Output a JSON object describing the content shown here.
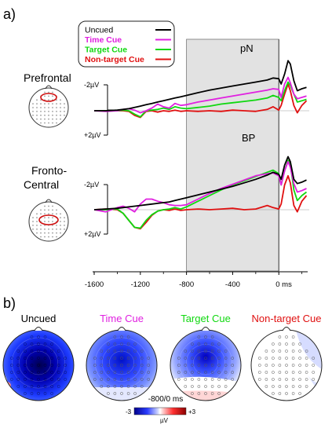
{
  "panel_labels": {
    "a": "a)",
    "b": "b)"
  },
  "colors": {
    "uncued": "#000000",
    "time": "#e020e0",
    "target": "#10d810",
    "nontarget": "#e01010",
    "window": "#e2e2e2"
  },
  "chart_data": [
    {
      "type": "line",
      "name_label": "Prefrontal",
      "region": "Prefrontal",
      "component_label": "pN",
      "xlim": [
        -1600,
        250
      ],
      "x_ticks": [
        -1600,
        -1200,
        -800,
        -400,
        0
      ],
      "x_tick_labels": [
        "-1600",
        "-1200",
        "-800",
        "-400",
        "0 ms"
      ],
      "y_tick_labels": [
        "-2µV",
        "+2µV"
      ],
      "ylim_note": "negative up",
      "shaded_window": [
        -800,
        0
      ],
      "legend": [
        "Uncued",
        "Time Cue",
        "Target Cue",
        "Non-target Cue"
      ],
      "x": [
        -1600,
        -1500,
        -1400,
        -1350,
        -1300,
        -1250,
        -1200,
        -1150,
        -1100,
        -1050,
        -1000,
        -950,
        -900,
        -850,
        -800,
        -700,
        -600,
        -500,
        -400,
        -300,
        -200,
        -100,
        -50,
        0,
        20,
        50,
        80,
        100,
        130,
        160,
        200,
        240
      ],
      "series": [
        {
          "name": "Uncued",
          "values": [
            0,
            0,
            0.1,
            0.2,
            0.3,
            0.5,
            0.7,
            0.9,
            1.1,
            1.3,
            1.5,
            1.7,
            1.9,
            2.1,
            2.3,
            2.7,
            3.1,
            3.4,
            3.7,
            4.0,
            4.3,
            4.6,
            4.9,
            4.8,
            4.0,
            5.5,
            7.5,
            7.0,
            4.5,
            3.0,
            3.3,
            3.5
          ]
        },
        {
          "name": "Time Cue",
          "values": [
            0,
            -0.1,
            0,
            0.2,
            0.3,
            0.1,
            -0.3,
            0,
            0.4,
            1.0,
            0.6,
            0.4,
            1.1,
            0.8,
            0.9,
            1.3,
            1.6,
            1.9,
            2.2,
            2.5,
            2.8,
            3.1,
            3.3,
            3.2,
            2.0,
            4.0,
            5.0,
            4.2,
            2.5,
            1.8,
            2.0,
            2.2
          ]
        },
        {
          "name": "Target Cue",
          "values": [
            0,
            0,
            0,
            0.1,
            0,
            -0.5,
            -0.9,
            0,
            0.1,
            0.2,
            0.4,
            0.2,
            0.6,
            0.4,
            0.3,
            0.5,
            0.7,
            1.0,
            1.2,
            1.4,
            1.6,
            1.9,
            2.3,
            2.0,
            1.5,
            3.0,
            4.3,
            3.8,
            2.5,
            1.3,
            1.5,
            1.7
          ]
        },
        {
          "name": "Non-target Cue",
          "values": [
            0,
            0,
            0,
            0,
            -0.1,
            -0.7,
            -1.0,
            -0.1,
            0,
            -0.2,
            0,
            -0.1,
            0.1,
            -0.1,
            0,
            -0.1,
            0,
            -0.1,
            0.1,
            0,
            -0.1,
            0.2,
            0.6,
            0.1,
            0.8,
            2.5,
            4.0,
            3.0,
            0.8,
            -0.3,
            0.8,
            1.5
          ]
        }
      ]
    },
    {
      "type": "line",
      "name_label": "Fronto-Central",
      "region": "Fronto-Central",
      "component_label": "BP",
      "xlim": [
        -1600,
        250
      ],
      "x_ticks": [
        -1600,
        -1200,
        -800,
        -400,
        0
      ],
      "x_tick_labels": [
        "-1600",
        "-1200",
        "-800",
        "-400",
        "0 ms"
      ],
      "y_tick_labels": [
        "-2µV",
        "+2µV"
      ],
      "ylim_note": "negative up",
      "shaded_window": [
        -800,
        0
      ],
      "x": [
        -1600,
        -1500,
        -1400,
        -1350,
        -1300,
        -1250,
        -1200,
        -1150,
        -1100,
        -1050,
        -1000,
        -950,
        -900,
        -850,
        -800,
        -700,
        -600,
        -500,
        -400,
        -300,
        -200,
        -100,
        -50,
        0,
        20,
        50,
        80,
        100,
        130,
        160,
        200,
        240
      ],
      "series": [
        {
          "name": "Uncued",
          "values": [
            0,
            0.1,
            0.2,
            0.3,
            0.4,
            0.5,
            0.6,
            0.7,
            0.8,
            0.9,
            1.0,
            1.1,
            1.3,
            1.5,
            1.7,
            2.1,
            2.5,
            2.9,
            3.3,
            3.8,
            4.3,
            4.9,
            5.3,
            5.0,
            4.3,
            6.3,
            7.5,
            6.8,
            4.3,
            3.7,
            3.9,
            4.2
          ]
        },
        {
          "name": "Time Cue",
          "values": [
            0,
            -0.3,
            0.3,
            0.5,
            0.2,
            -0.3,
            0.8,
            1.5,
            1.5,
            1.2,
            1.0,
            0.7,
            0.6,
            0.6,
            0.7,
            1.5,
            2.3,
            3.0,
            3.6,
            4.2,
            4.8,
            5.1,
            5.2,
            4.8,
            3.5,
            5.5,
            6.8,
            6.0,
            3.7,
            2.5,
            2.7,
            3.0
          ]
        },
        {
          "name": "Target Cue",
          "values": [
            0,
            0,
            0.1,
            -0.5,
            -1.5,
            -2.5,
            -2.6,
            -1.5,
            -0.7,
            -0.2,
            0,
            0.1,
            0.3,
            0.1,
            0.4,
            1.2,
            2.0,
            2.8,
            3.5,
            4.1,
            4.7,
            5.3,
            5.6,
            5.1,
            3.5,
            5.5,
            7.0,
            6.5,
            2.8,
            1.3,
            2.0,
            2.5
          ]
        },
        {
          "name": "Non-target Cue",
          "values": [
            0,
            0.1,
            0,
            -0.5,
            -1.5,
            -2.5,
            -2.7,
            -1.8,
            -0.8,
            -0.2,
            0,
            -0.1,
            0.1,
            -0.1,
            0,
            0.1,
            0,
            0.1,
            0.2,
            0,
            0.1,
            0.6,
            0.3,
            0.1,
            0.8,
            3.5,
            4.8,
            3.8,
            0.6,
            -0.3,
            1.2,
            2.0
          ]
        }
      ]
    }
  ],
  "topomaps": {
    "conditions": [
      {
        "label": "Uncued",
        "color": "#000000",
        "intensity": 1.0
      },
      {
        "label": "Time Cue",
        "color": "#e020e0",
        "intensity": 0.7
      },
      {
        "label": "Target Cue",
        "color": "#10d810",
        "intensity": 0.6
      },
      {
        "label": "Non-target Cue",
        "color": "#e01010",
        "intensity": 0.12
      }
    ],
    "window_label": "-800/0 ms",
    "colorbar_min": "-3",
    "colorbar_max": "+3",
    "colorbar_unit": "µV"
  }
}
